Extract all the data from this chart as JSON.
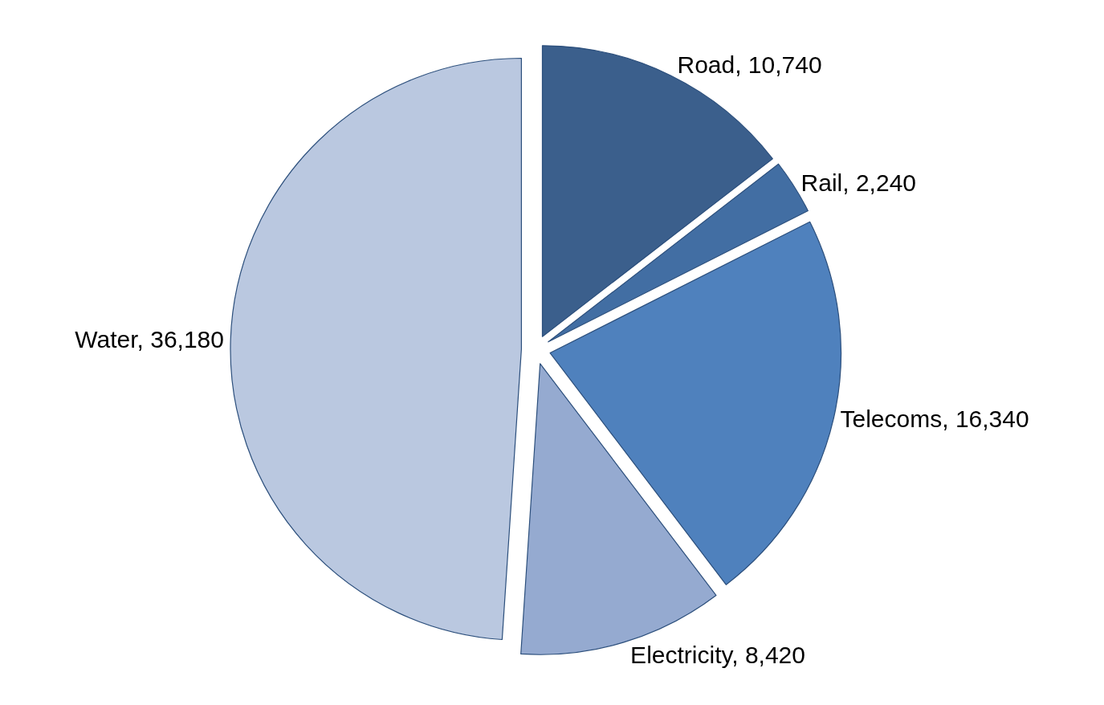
{
  "chart_data": {
    "type": "pie",
    "categories": [
      "Road",
      "Rail",
      "Telecoms",
      "Electricity",
      "Water"
    ],
    "values": [
      10740,
      2240,
      16340,
      8420,
      36180
    ],
    "colors": [
      "#3b5f8c",
      "#426ea3",
      "#4f81bd",
      "#95aad0",
      "#bac8e0"
    ],
    "value_labels": [
      "10,740",
      "2,240",
      "16,340",
      "8,420",
      "36,180"
    ],
    "legend": false
  }
}
